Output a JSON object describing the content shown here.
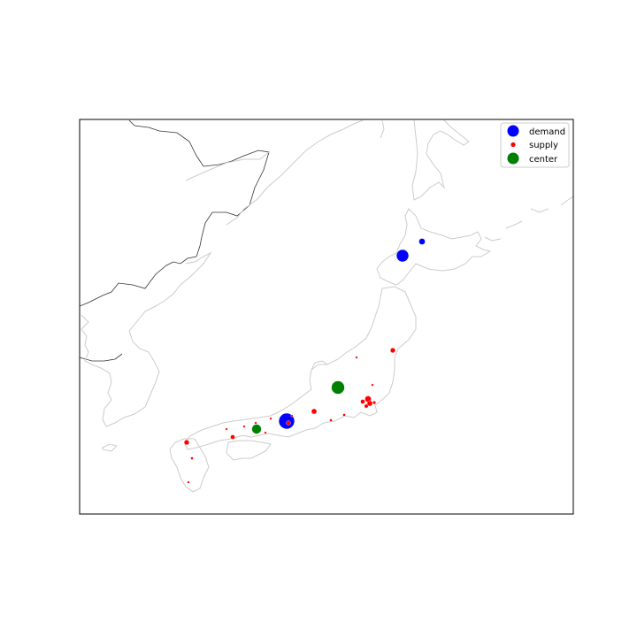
{
  "colors": {
    "demand": "#0000ff",
    "supply": "#ff0000",
    "center": "#008000",
    "coastline": "#cccccc",
    "border": "#333333",
    "frame": "#000000"
  },
  "legend": {
    "placement": "top-right",
    "items": [
      {
        "label": "demand",
        "color": "#0000ff"
      },
      {
        "label": "supply",
        "color": "#ff0000"
      },
      {
        "label": "center",
        "color": "#008000"
      }
    ]
  },
  "map": {
    "region": "Japan",
    "projection": "equirectangular",
    "lon_range": [
      121,
      153
    ],
    "lat_range": [
      28,
      49
    ]
  }
}
